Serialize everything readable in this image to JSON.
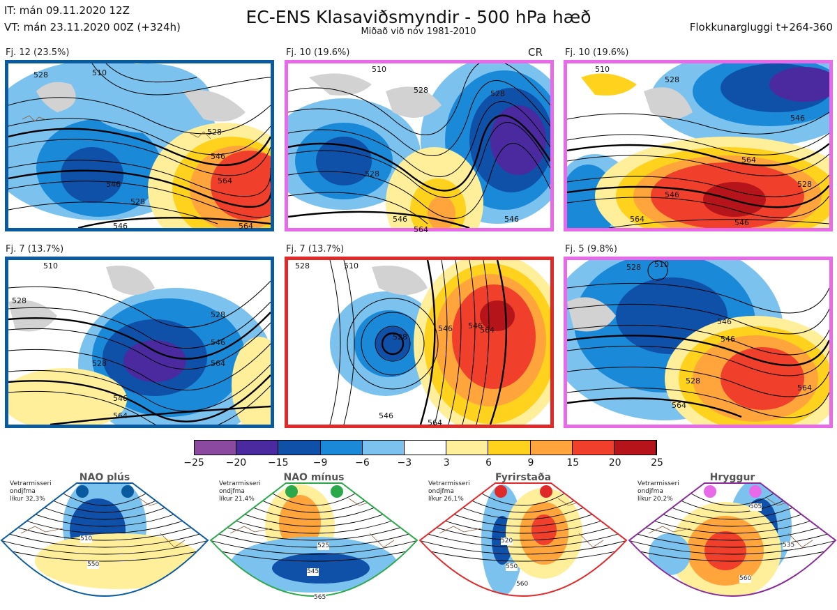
{
  "header": {
    "it_line": "IT: mán 09.11.2020 12Z",
    "vt_line": "VT: mán 23.11.2020 00Z  (+324h)",
    "title": "EC-ENS Klasaviðsmyndir - 500 hPa hæð",
    "subtitle": "Miðað við nóv 1981-2010",
    "window": "Flokkunargluggi t+264-360"
  },
  "panels": [
    {
      "label": "Fj. 12 (23.5%)",
      "tag": "",
      "border": "#0a5aa0",
      "contours": [
        "528",
        "510",
        "546",
        "528",
        "546",
        "564",
        "528",
        "546",
        "564"
      ]
    },
    {
      "label": "Fj. 10 (19.6%)",
      "tag": "CR",
      "border": "#e86ae8",
      "contours": [
        "510",
        "528",
        "528",
        "528",
        "546",
        "546",
        "564"
      ]
    },
    {
      "label": "Fj. 10 (19.6%)",
      "tag": "",
      "border": "#e86ae8",
      "contours": [
        "510",
        "528",
        "546",
        "564",
        "546",
        "528",
        "546",
        "564"
      ]
    },
    {
      "label": "Fj. 7 (13.7%)",
      "tag": "",
      "border": "#0a5aa0",
      "contours": [
        "528",
        "510",
        "528",
        "528",
        "546",
        "564",
        "546",
        "564"
      ]
    },
    {
      "label": "Fj. 7 (13.7%)",
      "tag": "",
      "border": "#e02a2a",
      "contours": [
        "528",
        "510",
        "528",
        "546",
        "546",
        "564",
        "564",
        "546"
      ]
    },
    {
      "label": "Fj. 5 (9.8%)",
      "tag": "",
      "border": "#e86ae8",
      "contours": [
        "528",
        "510",
        "546",
        "528",
        "546",
        "564",
        "564"
      ]
    }
  ],
  "colorbar": {
    "labels": [
      "−25",
      "−20",
      "−15",
      "−9",
      "−6",
      "−3",
      "3",
      "6",
      "9",
      "15",
      "20",
      "25"
    ],
    "colors": [
      "#8b4aa0",
      "#4b2aa0",
      "#0f50a8",
      "#1a8ad8",
      "#7cc2ee",
      "#ffffff",
      "#ffef9a",
      "#ffd21e",
      "#ffa53c",
      "#f0402c",
      "#e8302a",
      "#b4141a"
    ]
  },
  "regimes": [
    {
      "title": "NAO plús",
      "note": [
        "Vetrarmisseri",
        "ondjfma",
        "líkur 32,3%"
      ],
      "color": "#0a5aa0",
      "dot": "#0a5aa0",
      "contours": [
        "510",
        "550"
      ]
    },
    {
      "title": "NAO mínus",
      "note": [
        "Vetrarmisseri",
        "ondjfma",
        "líkur 21,4%"
      ],
      "color": "#2aa84a",
      "dot": "#2aa84a",
      "contours": [
        "525",
        "545",
        "565"
      ]
    },
    {
      "title": "Fyrirstaða",
      "note": [
        "Vetrarmisseri",
        "ondjfma",
        "líkur 26,1%"
      ],
      "color": "#e02a2a",
      "dot": "#e02a2a",
      "contours": [
        "520",
        "550",
        "560"
      ]
    },
    {
      "title": "Hryggur",
      "note": [
        "Vetrarmisseri",
        "ondjfma",
        "líkur 20,2%"
      ],
      "color": "#8a2a9a",
      "dot": "#e86ae8",
      "contours": [
        "505",
        "535",
        "560"
      ]
    }
  ]
}
